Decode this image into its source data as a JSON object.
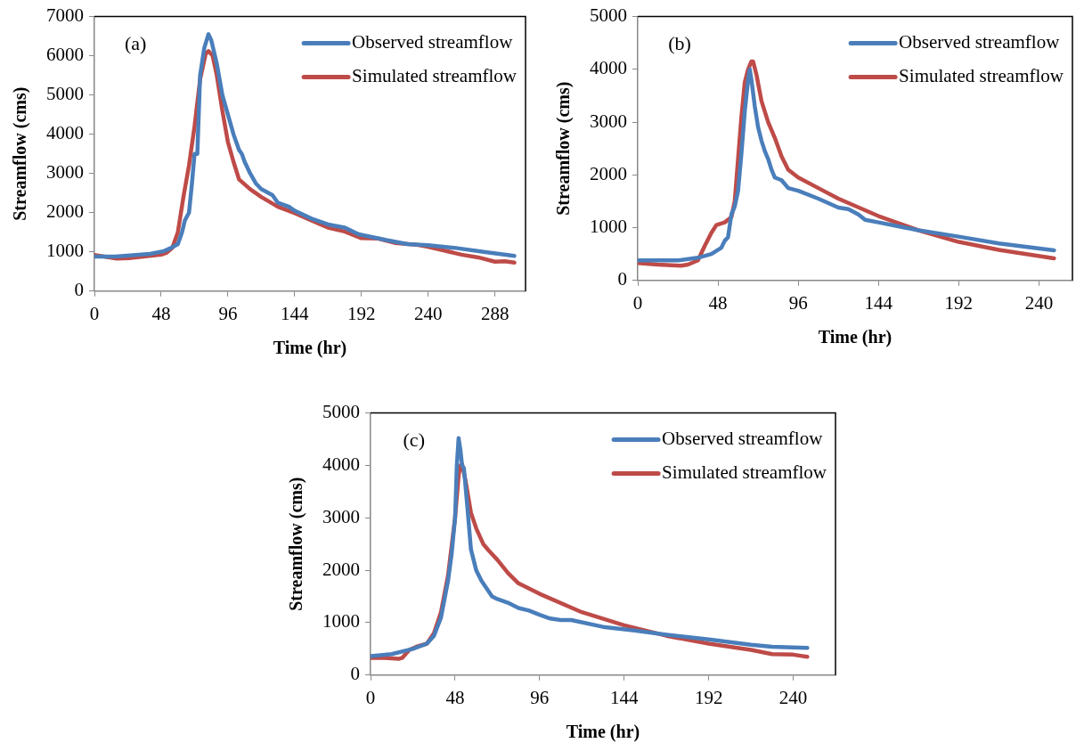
{
  "chart_data": [
    {
      "type": "line",
      "xlabel": "Time (hr)",
      "ylabel": "Streamflow (cms)",
      "annotations": [
        "(a)"
      ],
      "xlim": [
        0,
        310
      ],
      "xticks": [
        0,
        48,
        96,
        144,
        192,
        240,
        288
      ],
      "ylim": [
        0,
        7000
      ],
      "yticks": [
        0,
        1000,
        2000,
        3000,
        4000,
        5000,
        6000,
        7000
      ],
      "legend": "top right",
      "grid": false,
      "marker": "none",
      "line_style": "solid",
      "series": [
        {
          "name": "Observed streamflow",
          "color": "#4a7ebb",
          "x": [
            0,
            15,
            40,
            50,
            55,
            60,
            63,
            65,
            68,
            70,
            72,
            74,
            76,
            79,
            82,
            84,
            88,
            92,
            96,
            100,
            104,
            106,
            108,
            112,
            116,
            120,
            128,
            132,
            140,
            144,
            156,
            168,
            180,
            190,
            210,
            225,
            240,
            260,
            280,
            302
          ],
          "values": [
            880,
            880,
            950,
            1020,
            1100,
            1200,
            1500,
            1800,
            2000,
            2700,
            3500,
            3500,
            5500,
            6200,
            6550,
            6400,
            5800,
            5000,
            4500,
            4000,
            3600,
            3500,
            3300,
            3000,
            2750,
            2600,
            2450,
            2250,
            2150,
            2050,
            1850,
            1700,
            1620,
            1450,
            1300,
            1200,
            1170,
            1100,
            1000,
            900
          ]
        },
        {
          "name": "Simulated streamflow",
          "color": "#be4b48",
          "x": [
            0,
            16,
            25,
            48,
            52,
            56,
            60,
            64,
            68,
            72,
            76,
            80,
            82,
            85,
            88,
            92,
            96,
            100,
            104,
            112,
            120,
            132,
            144,
            156,
            168,
            180,
            192,
            204,
            216,
            232,
            240,
            264,
            276,
            288,
            295,
            302
          ],
          "values": [
            920,
            830,
            840,
            930,
            980,
            1100,
            1500,
            2400,
            3200,
            4200,
            5400,
            6050,
            6120,
            6000,
            5500,
            4600,
            3800,
            3300,
            2850,
            2600,
            2400,
            2150,
            1990,
            1800,
            1620,
            1520,
            1350,
            1340,
            1230,
            1180,
            1130,
            930,
            860,
            750,
            760,
            730
          ]
        }
      ]
    },
    {
      "type": "line",
      "xlabel": "Time (hr)",
      "ylabel": "Streamflow (cms)",
      "annotations": [
        "(b)"
      ],
      "xlim": [
        0,
        260
      ],
      "xticks": [
        0,
        48,
        96,
        144,
        192,
        240
      ],
      "ylim": [
        0,
        5000
      ],
      "yticks": [
        0,
        1000,
        2000,
        3000,
        4000,
        5000
      ],
      "legend": "top right",
      "grid": false,
      "marker": "none",
      "line_style": "solid",
      "series": [
        {
          "name": "Observed streamflow",
          "color": "#4a7ebb",
          "x": [
            0,
            24,
            36,
            44,
            50,
            52,
            54,
            56,
            58,
            60,
            62,
            64,
            66,
            67,
            68,
            70,
            72,
            74,
            76,
            78,
            80,
            82,
            86,
            90,
            96,
            108,
            120,
            126,
            132,
            136,
            144,
            168,
            192,
            216,
            249
          ],
          "values": [
            380,
            380,
            430,
            500,
            620,
            750,
            820,
            1250,
            1400,
            1700,
            2400,
            3200,
            3800,
            4000,
            3800,
            3300,
            2900,
            2650,
            2450,
            2300,
            2100,
            1950,
            1900,
            1750,
            1700,
            1550,
            1380,
            1350,
            1250,
            1150,
            1100,
            950,
            830,
            700,
            570
          ]
        },
        {
          "name": "Simulated streamflow",
          "color": "#be4b48",
          "x": [
            0,
            12,
            26,
            30,
            36,
            40,
            44,
            47,
            52,
            56,
            58,
            60,
            62,
            64,
            66,
            68,
            69,
            71,
            74,
            78,
            82,
            86,
            90,
            96,
            108,
            120,
            144,
            168,
            192,
            216,
            249
          ],
          "values": [
            330,
            300,
            280,
            300,
            380,
            650,
            900,
            1050,
            1100,
            1200,
            1500,
            2300,
            3100,
            3750,
            4000,
            4150,
            4150,
            3900,
            3400,
            3000,
            2700,
            2350,
            2100,
            1950,
            1750,
            1550,
            1220,
            950,
            730,
            580,
            420
          ]
        }
      ]
    },
    {
      "type": "line",
      "xlabel": "Time (hr)",
      "ylabel": "Streamflow (cms)",
      "annotations": [
        "(c)"
      ],
      "xlim": [
        0,
        264
      ],
      "xticks": [
        0,
        48,
        96,
        144,
        192,
        240
      ],
      "ylim": [
        0,
        5000
      ],
      "yticks": [
        0,
        1000,
        2000,
        3000,
        4000,
        5000
      ],
      "legend": "top right",
      "grid": false,
      "marker": "none",
      "line_style": "solid",
      "series": [
        {
          "name": "Observed streamflow",
          "color": "#4a7ebb",
          "x": [
            0,
            12,
            24,
            32,
            36,
            40,
            44,
            46,
            48,
            49,
            50,
            51,
            52,
            53,
            55,
            57,
            60,
            63,
            66,
            69,
            72,
            78,
            84,
            90,
            96,
            102,
            108,
            114,
            132,
            150,
            168,
            192,
            216,
            228,
            248
          ],
          "values": [
            360,
            400,
            500,
            600,
            750,
            1100,
            1800,
            2300,
            3000,
            4000,
            4520,
            4300,
            4000,
            3950,
            3200,
            2400,
            2000,
            1800,
            1650,
            1500,
            1450,
            1380,
            1280,
            1230,
            1150,
            1080,
            1050,
            1050,
            920,
            850,
            770,
            680,
            580,
            540,
            520
          ]
        },
        {
          "name": "Simulated streamflow",
          "color": "#be4b48",
          "x": [
            0,
            8,
            16,
            18,
            22,
            26,
            32,
            36,
            40,
            44,
            48,
            50,
            51,
            52,
            54,
            57,
            60,
            64,
            67,
            72,
            78,
            84,
            96,
            120,
            144,
            168,
            192,
            216,
            228,
            240,
            248
          ],
          "values": [
            330,
            330,
            310,
            330,
            480,
            540,
            600,
            800,
            1200,
            1900,
            3000,
            3800,
            4000,
            4020,
            3700,
            3100,
            2800,
            2500,
            2380,
            2200,
            1950,
            1750,
            1550,
            1200,
            950,
            750,
            600,
            480,
            400,
            390,
            350
          ]
        }
      ]
    }
  ]
}
